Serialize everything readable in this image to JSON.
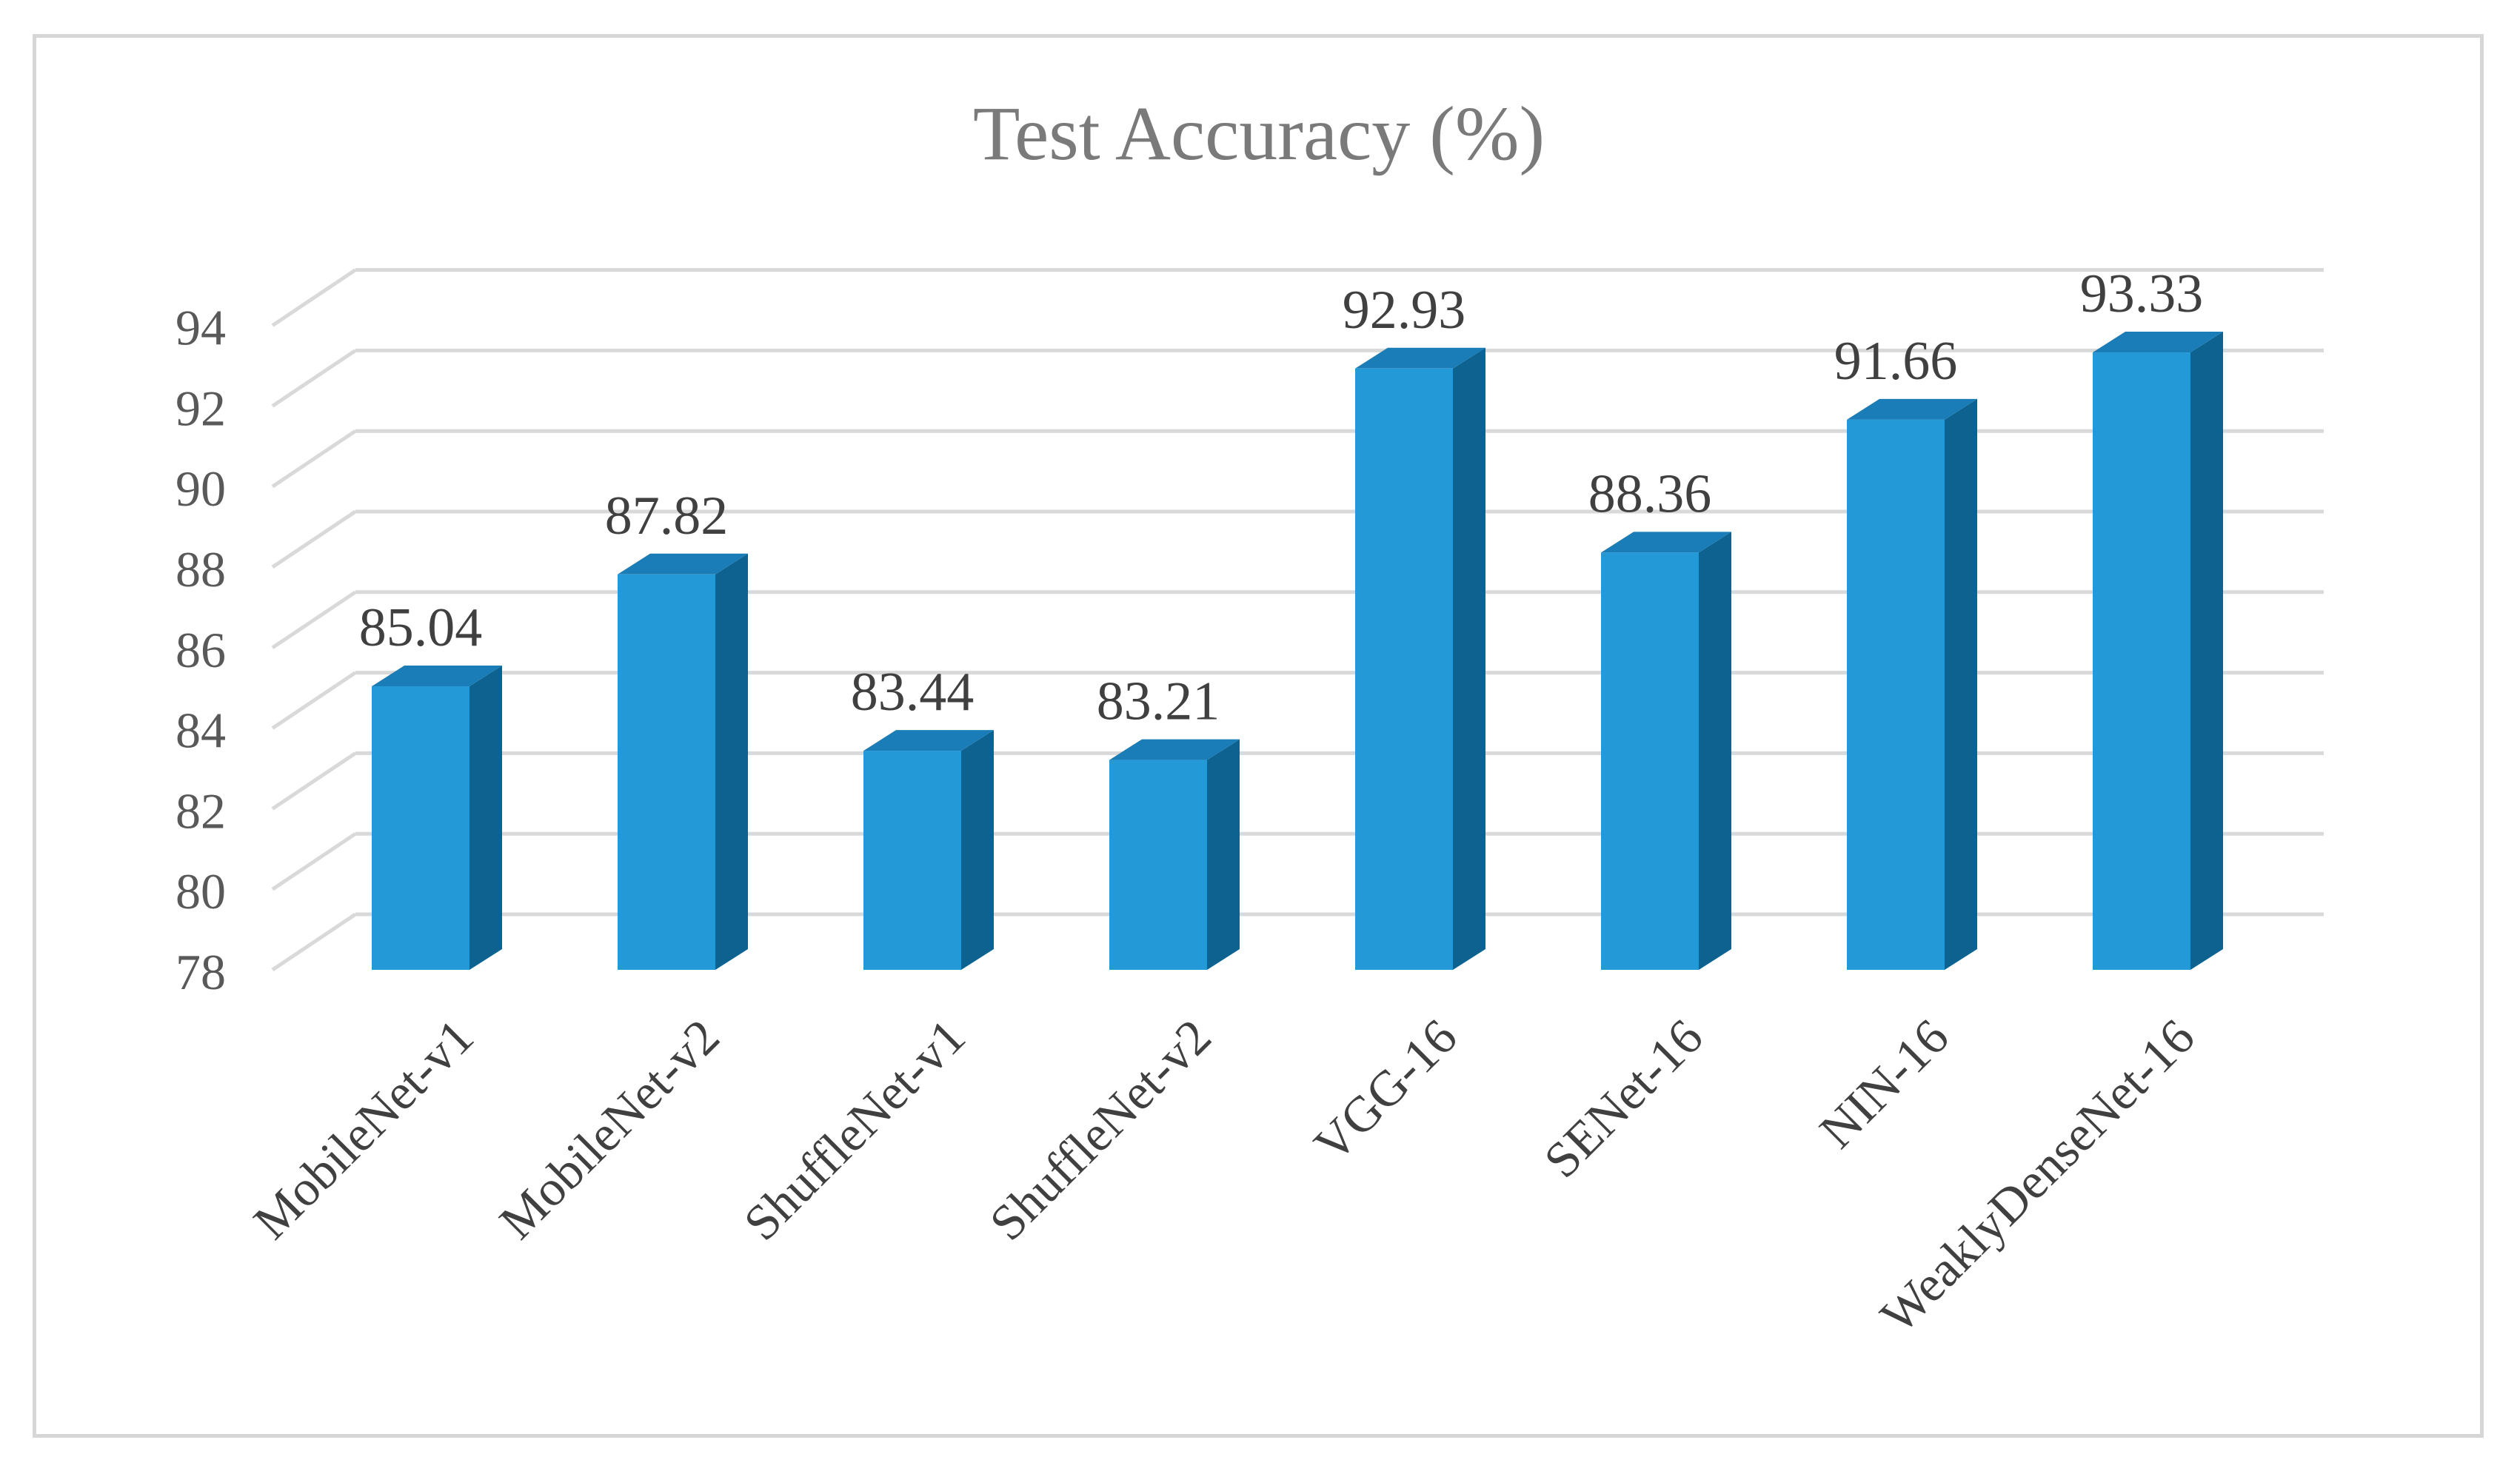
{
  "chart_data": {
    "type": "bar",
    "title": "Test Accuracy (%)",
    "xlabel": "",
    "ylabel": "",
    "ylim": [
      78,
      94
    ],
    "yticks": [
      "78",
      "80",
      "82",
      "84",
      "86",
      "88",
      "90",
      "92",
      "94"
    ],
    "grid": true,
    "legend": "none",
    "style": "3d-column",
    "categories": [
      "MobileNet-v1",
      "MobileNet-v2",
      "ShuffleNet-v1",
      "ShuffleNet-v2",
      "VGG-16",
      "SENet-16",
      "NIN-16",
      "WeaklyDenseNet-16"
    ],
    "values": [
      85.04,
      87.82,
      83.44,
      83.21,
      92.93,
      88.36,
      91.66,
      93.33
    ],
    "value_labels": [
      "85.04",
      "87.82",
      "83.44",
      "83.21",
      "92.93",
      "88.36",
      "91.66",
      "93.33"
    ],
    "colors": {
      "bar_front": "#2499d8",
      "bar_side": "#0d628f",
      "bar_top": "#1b7db7",
      "grid": "#d9d9d9",
      "title": "#7a7a7a",
      "tick": "#595959",
      "label": "#404040"
    }
  }
}
